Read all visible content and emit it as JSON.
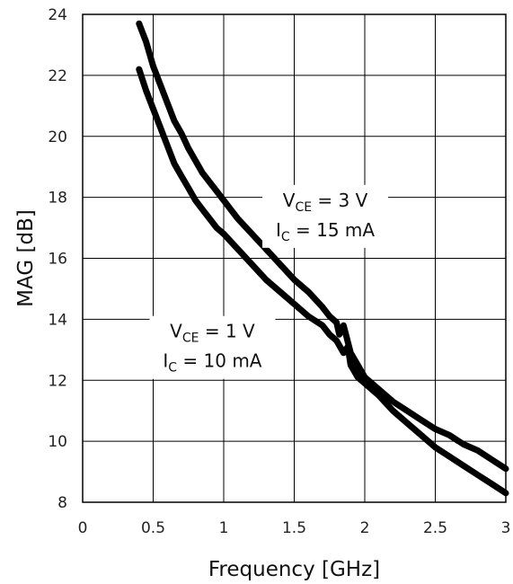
{
  "chart_data": {
    "type": "line",
    "xlabel": "Frequency [GHz]",
    "ylabel": "MAG  [dB]",
    "xlim": [
      0,
      3
    ],
    "ylim": [
      8,
      24
    ],
    "xticks": [
      0,
      0.5,
      1,
      1.5,
      2,
      2.5,
      3
    ],
    "xtick_labels": [
      "0",
      "0.5",
      "1",
      "1.5",
      "2",
      "2.5",
      "3"
    ],
    "yticks": [
      8,
      10,
      12,
      14,
      16,
      18,
      20,
      22,
      24
    ],
    "ytick_labels": [
      "8",
      "10",
      "12",
      "14",
      "16",
      "18",
      "20",
      "22",
      "24"
    ],
    "grid": true,
    "series": [
      {
        "line_color": "#000000",
        "x": [
          0.4,
          0.45,
          0.5,
          0.55,
          0.6,
          0.65,
          0.7,
          0.75,
          0.8,
          0.85,
          0.9,
          0.95,
          1.0,
          1.1,
          1.2,
          1.3,
          1.4,
          1.5,
          1.6,
          1.7,
          1.75,
          1.8,
          1.82,
          1.85,
          1.9,
          1.95,
          2.0,
          2.1,
          2.2,
          2.3,
          2.4,
          2.5,
          2.6,
          2.7,
          2.8,
          2.9,
          3.0
        ],
        "y": [
          23.7,
          23.1,
          22.3,
          21.7,
          21.1,
          20.5,
          20.1,
          19.6,
          19.2,
          18.8,
          18.5,
          18.2,
          17.9,
          17.3,
          16.8,
          16.3,
          15.8,
          15.3,
          14.9,
          14.4,
          14.1,
          13.9,
          13.5,
          13.8,
          12.9,
          12.5,
          12.1,
          11.7,
          11.3,
          11.0,
          10.7,
          10.4,
          10.2,
          9.9,
          9.7,
          9.4,
          9.1
        ]
      },
      {
        "line_color": "#000000",
        "x": [
          0.4,
          0.45,
          0.5,
          0.55,
          0.6,
          0.65,
          0.7,
          0.75,
          0.8,
          0.85,
          0.9,
          0.95,
          1.0,
          1.1,
          1.2,
          1.3,
          1.4,
          1.5,
          1.6,
          1.7,
          1.75,
          1.8,
          1.85,
          1.88,
          1.9,
          1.95,
          2.0,
          2.1,
          2.2,
          2.3,
          2.4,
          2.5,
          2.6,
          2.7,
          2.8,
          2.9,
          3.0
        ],
        "y": [
          22.2,
          21.5,
          20.9,
          20.3,
          19.7,
          19.1,
          18.7,
          18.3,
          17.9,
          17.6,
          17.3,
          17.0,
          16.8,
          16.3,
          15.8,
          15.3,
          14.9,
          14.5,
          14.1,
          13.8,
          13.5,
          13.3,
          12.9,
          13.1,
          12.5,
          12.1,
          11.9,
          11.5,
          11.0,
          10.6,
          10.2,
          9.8,
          9.5,
          9.2,
          8.9,
          8.6,
          8.3
        ]
      }
    ],
    "annotations": [
      {
        "line1": {
          "main": "V",
          "sub": "CE",
          "rest": " = 3 V"
        },
        "line2": {
          "main": "I",
          "sub": "C",
          "rest": " = 15 mA"
        },
        "at": {
          "x": 1.72,
          "y": 17.7
        }
      },
      {
        "line1": {
          "main": "V",
          "sub": "CE",
          "rest": " = 1 V"
        },
        "line2": {
          "main": "I",
          "sub": "C",
          "rest": " = 10 mA"
        },
        "at": {
          "x": 0.92,
          "y": 13.4
        }
      }
    ]
  }
}
